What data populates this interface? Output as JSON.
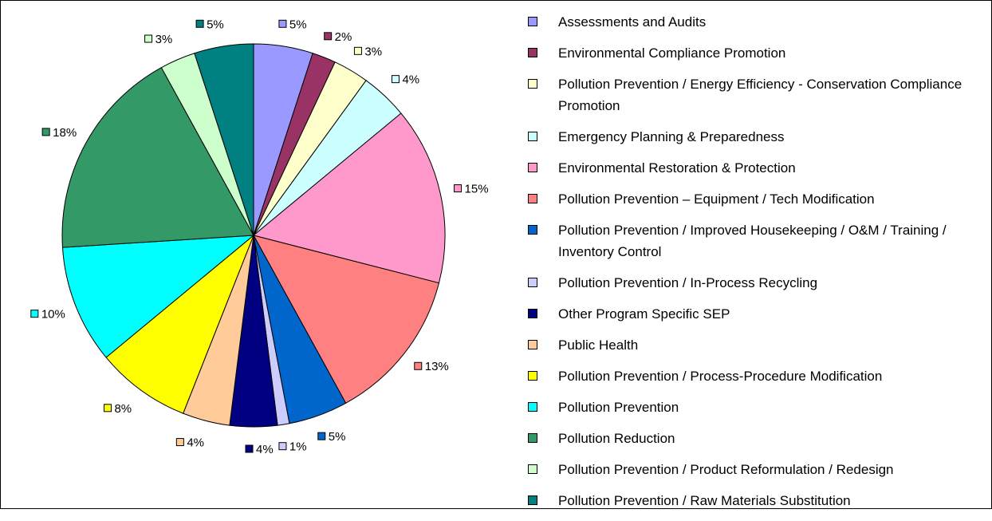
{
  "chart_data": {
    "type": "pie",
    "categories": [
      "Assessments and Audits",
      "Environmental Compliance Promotion",
      "Pollution Prevention / Energy Efficiency - Conservation Compliance Promotion",
      "Emergency Planning & Preparedness",
      "Environmental Restoration & Protection",
      "Pollution Prevention – Equipment / Tech Modification",
      "Pollution Prevention / Improved Housekeeping / O&M / Training / Inventory Control",
      "Pollution Prevention / In-Process Recycling",
      "Other Program Specific SEP",
      "Public Health",
      "Pollution Prevention / Process-Procedure Modification",
      "Pollution Prevention",
      "Pollution Reduction",
      "Pollution Prevention / Product Reformulation / Redesign",
      "Pollution Prevention / Raw Materials Substitution"
    ],
    "values": [
      5,
      2,
      3,
      4,
      15,
      13,
      5,
      1,
      4,
      4,
      8,
      10,
      18,
      3,
      5
    ],
    "value_labels": [
      "5%",
      "2%",
      "3%",
      "4%",
      "15%",
      "13%",
      "5%",
      "1%",
      "4%",
      "4%",
      "8%",
      "10%",
      "18%",
      "3%",
      "5%"
    ],
    "colors": [
      "#9999FF",
      "#993366",
      "#FFFFCC",
      "#CCFFFF",
      "#FF99CC",
      "#FF8080",
      "#0066CC",
      "#CCCCFF",
      "#000080",
      "#FFCC99",
      "#FFFF00",
      "#00FFFF",
      "#339966",
      "#CCFFCC",
      "#008080"
    ]
  }
}
